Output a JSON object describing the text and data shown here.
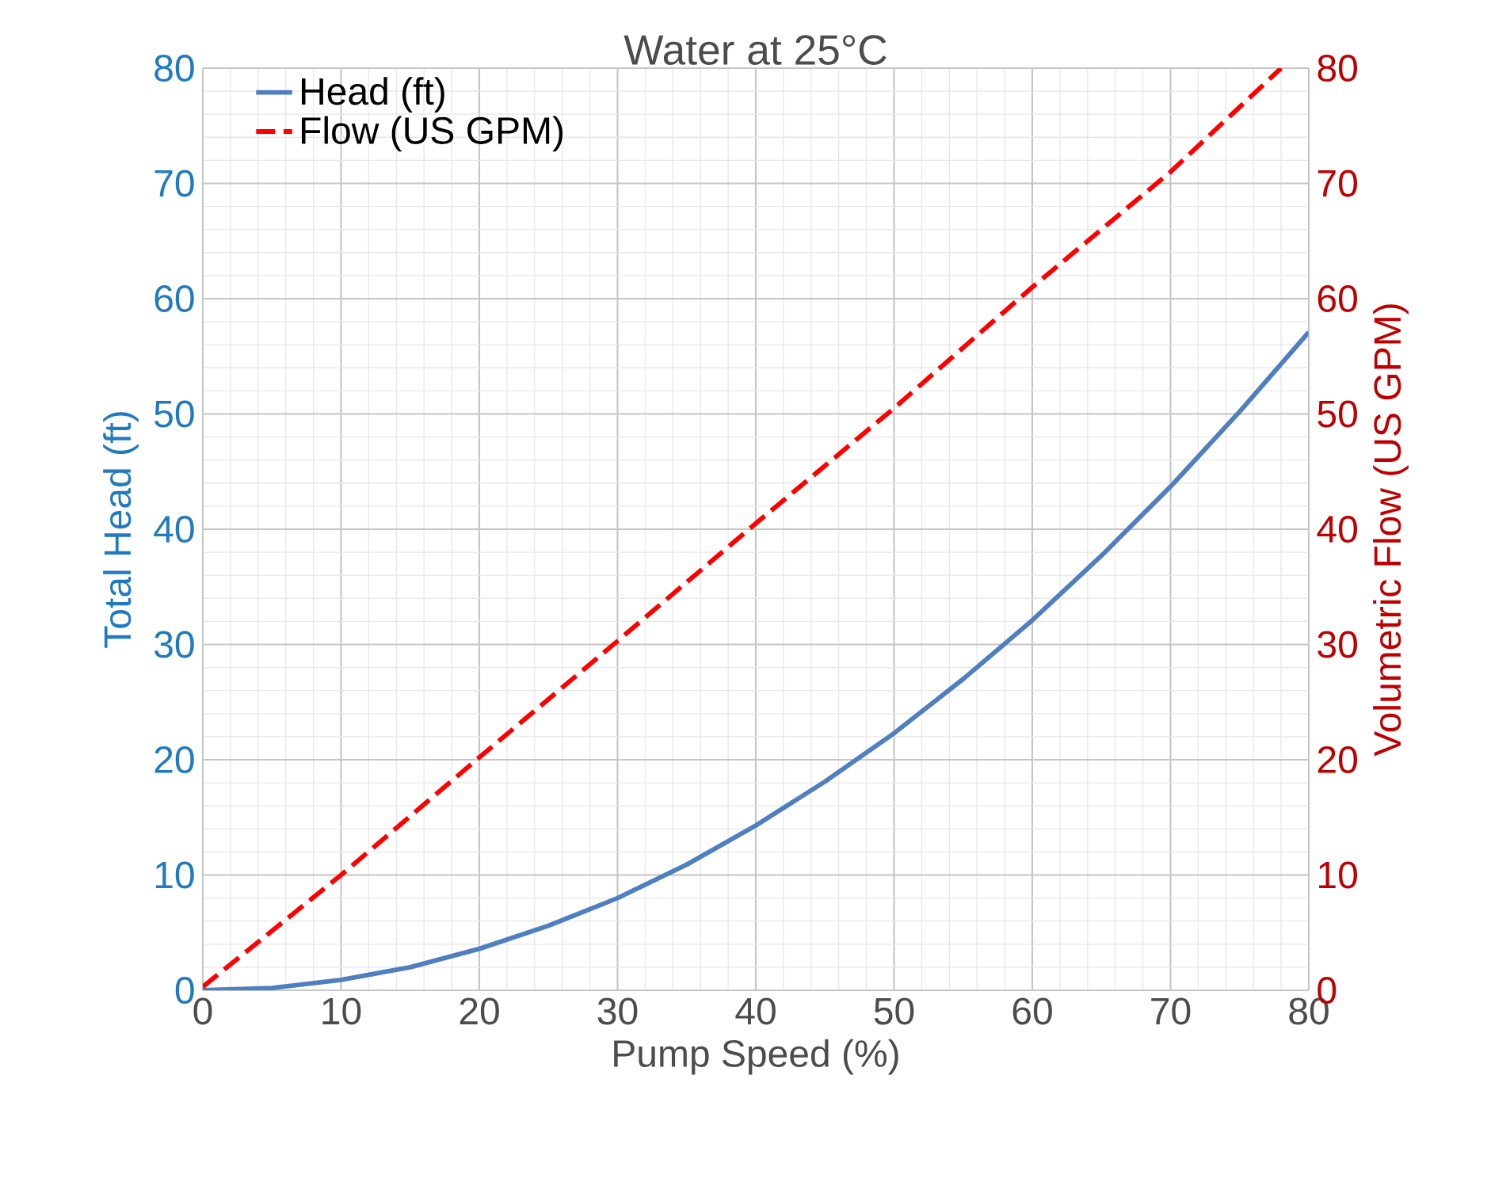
{
  "chart_data": {
    "type": "line",
    "title": "Water at 25°C",
    "xlabel": "Pump Speed (%)",
    "ylabel": "Total Head (ft)",
    "y2label": "Volumetric Flow (US GPM)",
    "xlim": [
      0,
      80
    ],
    "xticks": [
      0,
      10,
      20,
      30,
      40,
      50,
      60,
      70,
      80
    ],
    "ylim": [
      0,
      80
    ],
    "yticks": [
      0,
      10,
      20,
      30,
      40,
      50,
      60,
      70,
      80
    ],
    "y2lim": [
      0,
      80
    ],
    "y2ticks": [
      0,
      10,
      20,
      30,
      40,
      50,
      60,
      70,
      80
    ],
    "grid": true,
    "legend": "top left",
    "marker": "none",
    "series": [
      {
        "name": "Head (ft)",
        "color": "#4f7fc0",
        "line_style": "solid",
        "x": [
          0,
          5,
          10,
          15,
          20,
          25,
          30,
          35,
          40,
          45,
          50,
          55,
          60,
          65,
          70,
          75,
          80
        ],
        "values": [
          0,
          0.2,
          0.9,
          2,
          3.6,
          5.6,
          8,
          10.9,
          14.3,
          18.1,
          22.3,
          27,
          32.1,
          37.7,
          43.7,
          50.2,
          57.1
        ]
      },
      {
        "name": "Flow (US GPM)",
        "color": "#ff0000",
        "line_style": "dashed",
        "axis": "y2",
        "x": [
          0,
          10,
          20,
          30,
          40,
          50,
          60,
          70,
          78
        ],
        "values": [
          0.3,
          10,
          20.2,
          30.3,
          40.5,
          50.5,
          61,
          71,
          80
        ]
      }
    ]
  }
}
